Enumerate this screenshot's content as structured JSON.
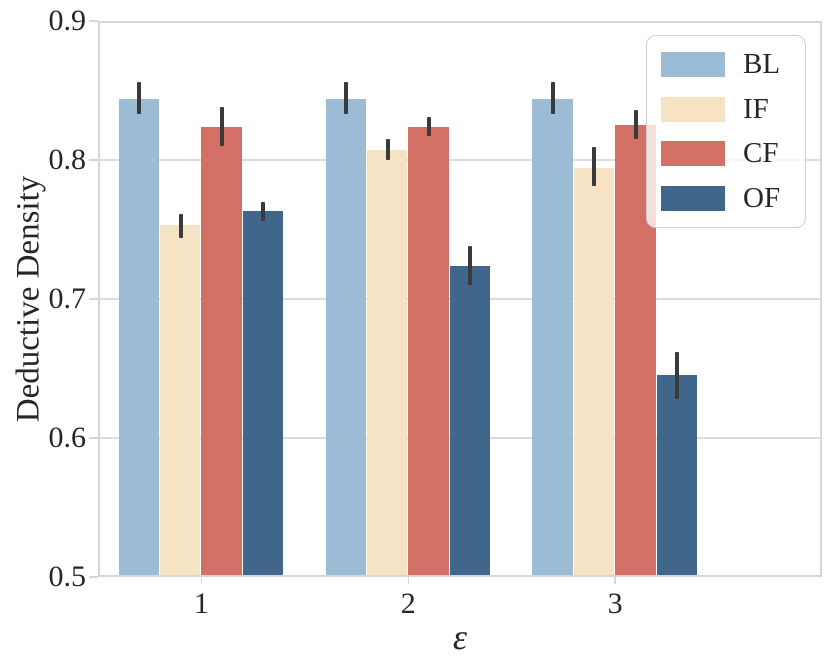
{
  "chart_data": {
    "type": "bar",
    "title": "",
    "xlabel": "ε",
    "ylabel": "Deductive Density",
    "categories": [
      "1",
      "2",
      "3"
    ],
    "ylim": [
      0.5,
      0.9
    ],
    "yticks": [
      0.5,
      0.6,
      0.7,
      0.8,
      0.9
    ],
    "ytick_labels": [
      "0.5",
      "0.6",
      "0.7",
      "0.8",
      "0.9"
    ],
    "grid": "horizontal",
    "legend_position": "upper right",
    "error_bar_color": "#3a3a3a",
    "axis_color": "#d6d6d6",
    "series": [
      {
        "name": "BL",
        "color": "#9bbcd4",
        "values": [
          0.844,
          0.844,
          0.844
        ],
        "error_ranges": [
          [
            0.833,
            0.856
          ],
          [
            0.833,
            0.856
          ],
          [
            0.833,
            0.856
          ]
        ]
      },
      {
        "name": "IF",
        "color": "#f5e3c3",
        "values": [
          0.753,
          0.807,
          0.794
        ],
        "error_ranges": [
          [
            0.744,
            0.761
          ],
          [
            0.8,
            0.815
          ],
          [
            0.781,
            0.809
          ]
        ]
      },
      {
        "name": "CF",
        "color": "#d27066",
        "values": [
          0.824,
          0.824,
          0.825
        ],
        "error_ranges": [
          [
            0.81,
            0.838
          ],
          [
            0.817,
            0.831
          ],
          [
            0.815,
            0.836
          ]
        ]
      },
      {
        "name": "OF",
        "color": "#40668b",
        "values": [
          0.763,
          0.724,
          0.645
        ],
        "error_ranges": [
          [
            0.756,
            0.77
          ],
          [
            0.71,
            0.738
          ],
          [
            0.628,
            0.662
          ]
        ]
      }
    ]
  }
}
